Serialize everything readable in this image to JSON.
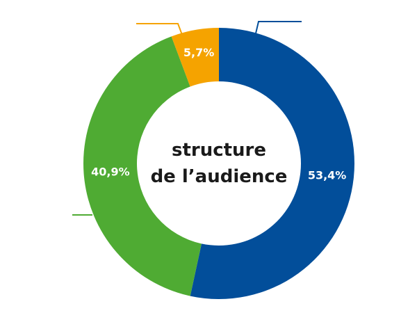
{
  "chart_data": {
    "type": "pie",
    "donut": true,
    "title_lines": [
      "structure",
      "de l’audience"
    ],
    "slices": [
      {
        "value": 53.4,
        "label": "53,4%",
        "color": "#024e9a"
      },
      {
        "value": 40.9,
        "label": "40,9%",
        "color": "#4fab33"
      },
      {
        "value": 5.7,
        "label": "5,7%",
        "color": "#f5a300"
      }
    ],
    "legend": "none"
  }
}
